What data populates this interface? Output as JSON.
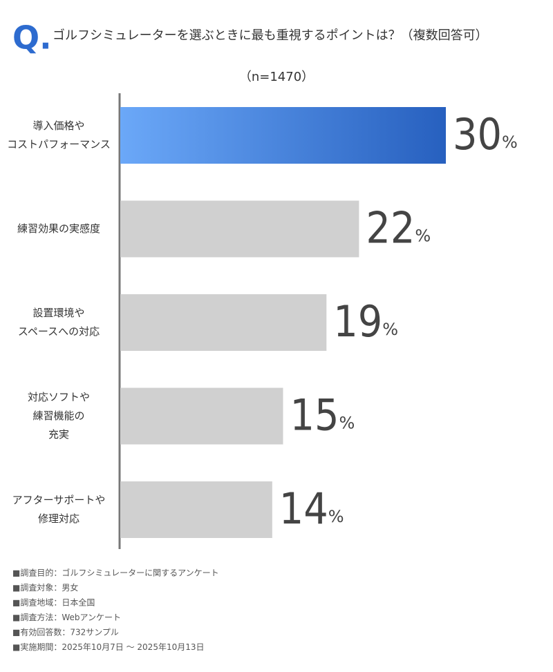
{
  "chart_data": {
    "type": "bar",
    "orientation": "horizontal",
    "title_prefix": "Q.",
    "title": "ゴルフシミュレーターを選ぶときに最も重視するポイントは？（複数回答可）",
    "subtitle": "（n=1470）",
    "categories": [
      [
        "導入価格や",
        "コストパフォーマンス"
      ],
      [
        "練習効果の実感度"
      ],
      [
        "設置環境や",
        "スペースへの対応"
      ],
      [
        "対応ソフトや",
        "練習機能の",
        "充実"
      ],
      [
        "アフターサポートや",
        "修理対応"
      ]
    ],
    "values": [
      30,
      22,
      19,
      15,
      14
    ],
    "value_unit": "%",
    "color": "#d0d0d0",
    "highlight": 0,
    "highlight_gradient": [
      "#6ba8f8",
      "#2760bf"
    ],
    "notes": [
      "■調査目的：ゴルフシミュレーターに関するアンケート",
      "■調査対象：男女",
      "■調査地域：日本全国",
      "■調査方法：Webアンケート",
      "■有効回答数：732サンプル",
      "■実施期間：2025年10月7日 ～ 2025年10月13日"
    ]
  }
}
